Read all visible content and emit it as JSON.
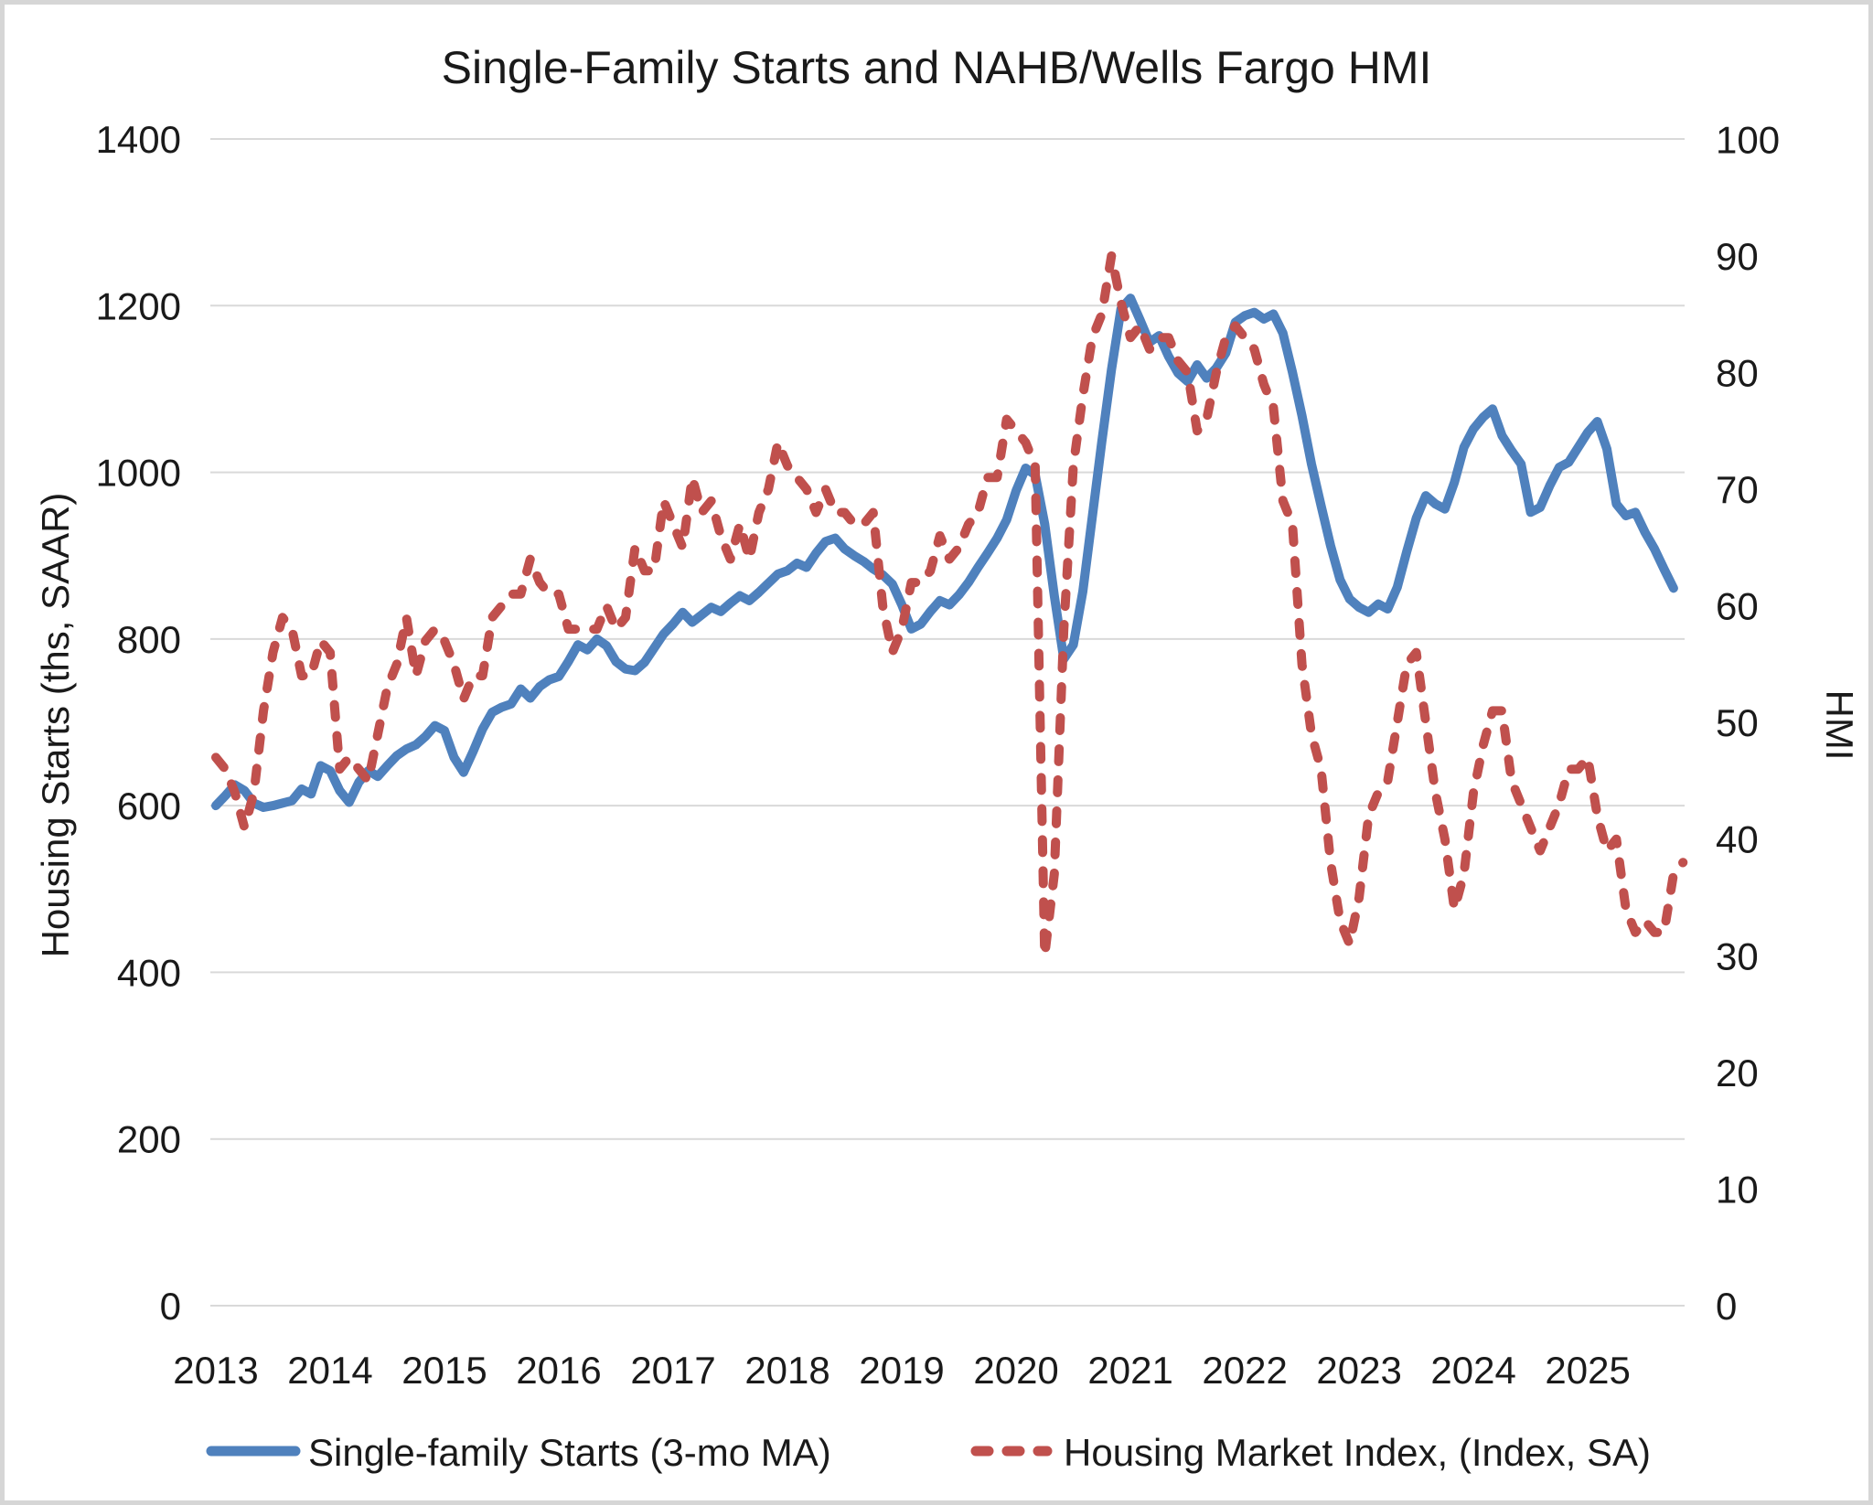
{
  "title": "Single-Family Starts and NAHB/Wells Fargo HMI",
  "left_axis": {
    "label": "Housing Starts (ths, SAAR)",
    "ticks": [
      1400,
      1200,
      1000,
      800,
      600,
      400,
      200,
      0
    ],
    "min": 0,
    "max": 1400
  },
  "right_axis": {
    "label": "HMI",
    "ticks": [
      100,
      90,
      80,
      70,
      60,
      50,
      40,
      30,
      20,
      10,
      0
    ],
    "min": 0,
    "max": 100
  },
  "x_axis": {
    "year_labels": [
      "2013",
      "2014",
      "2015",
      "2016",
      "2017",
      "2018",
      "2019",
      "2020",
      "2021",
      "2022",
      "2023",
      "2024",
      "2025"
    ]
  },
  "legend": {
    "items": [
      {
        "label": "Single-family Starts (3-mo MA)",
        "color": "#4F81BD",
        "style": "solid"
      },
      {
        "label": "Housing Market Index, (Index, SA)",
        "color": "#C0504D",
        "style": "dashed"
      }
    ]
  },
  "colors": {
    "starts_line": "#4F81BD",
    "hmi_line": "#C0504D",
    "gridline": "#d9d9d9",
    "text": "#1a1a1a",
    "background": "#ffffff"
  },
  "chart_data": {
    "type": "line",
    "x_freq": "monthly",
    "grid": true,
    "legend_position": "bottom",
    "left_ylim": [
      0,
      1400
    ],
    "right_ylim": [
      0,
      100
    ],
    "months": [
      "2013-01",
      "2013-02",
      "2013-03",
      "2013-04",
      "2013-05",
      "2013-06",
      "2013-07",
      "2013-08",
      "2013-09",
      "2013-10",
      "2013-11",
      "2013-12",
      "2014-01",
      "2014-02",
      "2014-03",
      "2014-04",
      "2014-05",
      "2014-06",
      "2014-07",
      "2014-08",
      "2014-09",
      "2014-10",
      "2014-11",
      "2014-12",
      "2015-01",
      "2015-02",
      "2015-03",
      "2015-04",
      "2015-05",
      "2015-06",
      "2015-07",
      "2015-08",
      "2015-09",
      "2015-10",
      "2015-11",
      "2015-12",
      "2016-01",
      "2016-02",
      "2016-03",
      "2016-04",
      "2016-05",
      "2016-06",
      "2016-07",
      "2016-08",
      "2016-09",
      "2016-10",
      "2016-11",
      "2016-12",
      "2017-01",
      "2017-02",
      "2017-03",
      "2017-04",
      "2017-05",
      "2017-06",
      "2017-07",
      "2017-08",
      "2017-09",
      "2017-10",
      "2017-11",
      "2017-12",
      "2018-01",
      "2018-02",
      "2018-03",
      "2018-04",
      "2018-05",
      "2018-06",
      "2018-07",
      "2018-08",
      "2018-09",
      "2018-10",
      "2018-11",
      "2018-12",
      "2019-01",
      "2019-02",
      "2019-03",
      "2019-04",
      "2019-05",
      "2019-06",
      "2019-07",
      "2019-08",
      "2019-09",
      "2019-10",
      "2019-11",
      "2019-12",
      "2020-01",
      "2020-02",
      "2020-03",
      "2020-04",
      "2020-05",
      "2020-06",
      "2020-07",
      "2020-08",
      "2020-09",
      "2020-10",
      "2020-11",
      "2020-12",
      "2021-01",
      "2021-02",
      "2021-03",
      "2021-04",
      "2021-05",
      "2021-06",
      "2021-07",
      "2021-08",
      "2021-09",
      "2021-10",
      "2021-11",
      "2021-12",
      "2022-01",
      "2022-02",
      "2022-03",
      "2022-04",
      "2022-05",
      "2022-06",
      "2022-07",
      "2022-08",
      "2022-09",
      "2022-10",
      "2022-11",
      "2022-12",
      "2023-01",
      "2023-02",
      "2023-03",
      "2023-04",
      "2023-05",
      "2023-06",
      "2023-07",
      "2023-08",
      "2023-09",
      "2023-10",
      "2023-11",
      "2023-12",
      "2024-01",
      "2024-02",
      "2024-03",
      "2024-04",
      "2024-05",
      "2024-06",
      "2024-07",
      "2024-08",
      "2024-09",
      "2024-10",
      "2024-11",
      "2024-12",
      "2025-01",
      "2025-02",
      "2025-03",
      "2025-04",
      "2025-05",
      "2025-06",
      "2025-07",
      "2025-08",
      "2025-09",
      "2025-10",
      "2025-11"
    ],
    "series": [
      {
        "name": "Single-family Starts (3-mo MA)",
        "axis": "left",
        "color": "#4F81BD",
        "style": "solid",
        "values": [
          600,
          612,
          625,
          618,
          603,
          598,
          600,
          603,
          606,
          620,
          614,
          648,
          642,
          618,
          604,
          628,
          642,
          635,
          648,
          660,
          668,
          673,
          683,
          696,
          690,
          658,
          640,
          665,
          692,
          712,
          718,
          722,
          740,
          729,
          743,
          751,
          755,
          773,
          793,
          787,
          800,
          792,
          773,
          764,
          762,
          772,
          789,
          806,
          818,
          832,
          820,
          829,
          838,
          833,
          843,
          852,
          846,
          856,
          867,
          878,
          882,
          891,
          886,
          903,
          917,
          921,
          908,
          900,
          893,
          884,
          877,
          866,
          841,
          812,
          818,
          833,
          846,
          841,
          853,
          868,
          886,
          903,
          921,
          943,
          978,
          1005,
          997,
          938,
          852,
          776,
          793,
          857,
          947,
          1037,
          1123,
          1196,
          1209,
          1183,
          1156,
          1164,
          1139,
          1119,
          1109,
          1129,
          1113,
          1125,
          1143,
          1180,
          1188,
          1192,
          1184,
          1190,
          1167,
          1120,
          1068,
          1010,
          960,
          912,
          871,
          848,
          838,
          832,
          842,
          836,
          862,
          905,
          945,
          972,
          962,
          956,
          988,
          1030,
          1052,
          1066,
          1076,
          1044,
          1026,
          1010,
          952,
          958,
          984,
          1006,
          1012,
          1030,
          1048,
          1061,
          1028,
          962,
          948,
          952,
          928,
          908,
          884,
          861,
          null
        ]
      },
      {
        "name": "Housing Market Index, (Index, SA)",
        "axis": "right",
        "color": "#C0504D",
        "style": "dashed",
        "values": [
          47,
          46,
          44,
          41,
          44,
          51,
          56,
          59,
          58,
          54,
          54,
          57,
          56,
          46,
          47,
          46,
          45,
          49,
          53,
          55,
          59,
          54,
          57,
          58,
          57,
          55,
          52,
          54,
          54,
          59,
          60,
          61,
          61,
          64,
          62,
          61,
          61,
          58,
          58,
          58,
          58,
          60,
          58,
          59,
          65,
          63,
          63,
          69,
          67,
          65,
          71,
          68,
          69,
          66,
          64,
          67,
          64,
          68,
          70,
          74,
          72,
          71,
          70,
          68,
          70,
          68,
          68,
          67,
          67,
          68,
          60,
          56,
          58,
          62,
          62,
          63,
          66,
          64,
          65,
          67,
          68,
          71,
          71,
          76,
          75,
          74,
          72,
          30,
          37,
          58,
          72,
          78,
          83,
          85,
          90,
          86,
          83,
          84,
          82,
          83,
          83,
          81,
          80,
          75,
          76,
          80,
          83,
          84,
          83,
          82,
          79,
          77,
          69,
          67,
          55,
          49,
          46,
          38,
          33,
          31,
          35,
          42,
          44,
          45,
          50,
          55,
          56,
          50,
          44,
          40,
          34,
          37,
          44,
          48,
          51,
          51,
          45,
          43,
          41,
          39,
          41,
          43,
          46,
          46,
          47,
          42,
          39,
          40,
          34,
          32,
          33,
          32,
          32,
          37,
          38
        ]
      }
    ]
  }
}
